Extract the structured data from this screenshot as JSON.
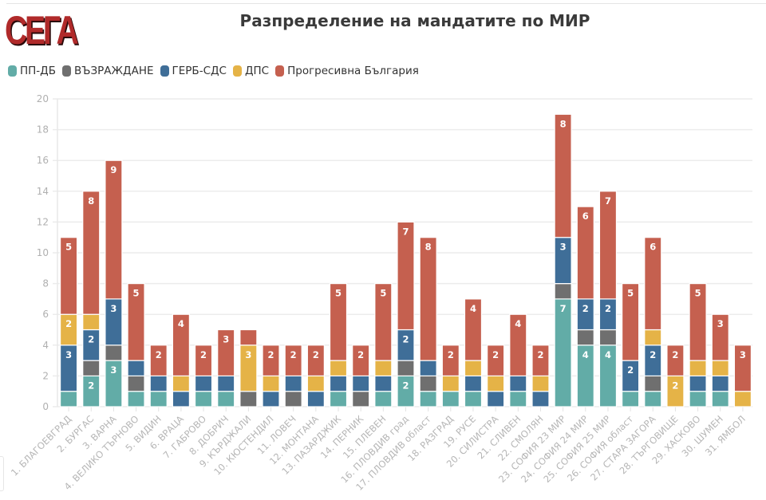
{
  "logo": {
    "text": "СЕГА"
  },
  "chart_data": {
    "type": "bar",
    "stacked": true,
    "title": "Разпределение на мандатите по МИР",
    "xlabel": "",
    "ylabel": "",
    "ylim": [
      0,
      20
    ],
    "yticks": [
      0,
      2,
      4,
      6,
      8,
      10,
      12,
      14,
      16,
      18,
      20
    ],
    "grid": true,
    "legend_position": "top-left",
    "categories": [
      "1. БЛАГОЕВГРАД",
      "2. БУРГАС",
      "3. ВАРНА",
      "4. ВЕЛИКО ТЪРНОВО",
      "5. ВИДИН",
      "6. ВРАЦА",
      "7. ГАБРОВО",
      "8. ДОБРИЧ",
      "9. КЪРДЖАЛИ",
      "10. КЮСТЕНДИЛ",
      "11. ЛОВЕЧ",
      "12. МОНТАНА",
      "13. ПАЗАРДЖИК",
      "14. ПЕРНИК",
      "15. ПЛЕВЕН",
      "16. ПЛОВДИВ град",
      "17. ПЛОВДИВ област",
      "18. РАЗГРАД",
      "19. РУСЕ",
      "20. СИЛИСТРА",
      "21. СЛИВЕН",
      "22. СМОЛЯН",
      "23. СОФИЯ 23 МИР",
      "24. СОФИЯ 24 МИР",
      "25. СОФИЯ 25 МИР",
      "26. СОФИЯ област",
      "27. СТАРА ЗАГОРА",
      "28. ТЪРГОВИЩЕ",
      "29. ХАСКОВО",
      "30. ШУМЕН",
      "31. ЯМБОЛ"
    ],
    "series": [
      {
        "name": "ПП-ДБ",
        "color": "#62aca7",
        "values": [
          1,
          2,
          3,
          1,
          1,
          0,
          1,
          1,
          0,
          0,
          0,
          0,
          1,
          0,
          1,
          2,
          1,
          1,
          1,
          0,
          1,
          0,
          7,
          4,
          4,
          1,
          1,
          0,
          1,
          1,
          0
        ]
      },
      {
        "name": "ВЪЗРАЖДАНЕ",
        "color": "#6f6f6f",
        "values": [
          0,
          1,
          1,
          1,
          0,
          0,
          0,
          0,
          1,
          0,
          1,
          0,
          0,
          1,
          0,
          1,
          1,
          0,
          0,
          0,
          0,
          0,
          1,
          1,
          1,
          0,
          1,
          0,
          0,
          0,
          0
        ]
      },
      {
        "name": "ГЕРБ-СДС",
        "color": "#3f6e98",
        "values": [
          3,
          2,
          3,
          1,
          1,
          1,
          1,
          1,
          0,
          1,
          1,
          1,
          1,
          1,
          1,
          2,
          1,
          0,
          1,
          1,
          1,
          1,
          3,
          2,
          2,
          2,
          2,
          0,
          1,
          1,
          0
        ]
      },
      {
        "name": "ДПС",
        "color": "#e5b347",
        "values": [
          2,
          1,
          0,
          0,
          0,
          1,
          0,
          0,
          3,
          1,
          0,
          1,
          1,
          0,
          1,
          0,
          0,
          1,
          1,
          1,
          0,
          1,
          0,
          0,
          0,
          0,
          1,
          2,
          1,
          1,
          1
        ]
      },
      {
        "name": "Прогресивна България",
        "color": "#c5604f",
        "values": [
          5,
          8,
          9,
          5,
          2,
          4,
          2,
          3,
          1,
          2,
          2,
          2,
          5,
          2,
          5,
          7,
          8,
          2,
          4,
          2,
          4,
          2,
          8,
          6,
          7,
          5,
          6,
          2,
          5,
          3,
          3
        ]
      }
    ],
    "totals": [
      11,
      14,
      16,
      8,
      4,
      6,
      4,
      5,
      5,
      4,
      4,
      4,
      8,
      4,
      8,
      12,
      11,
      4,
      7,
      4,
      6,
      4,
      19,
      13,
      14,
      8,
      11,
      4,
      8,
      6,
      4
    ]
  }
}
